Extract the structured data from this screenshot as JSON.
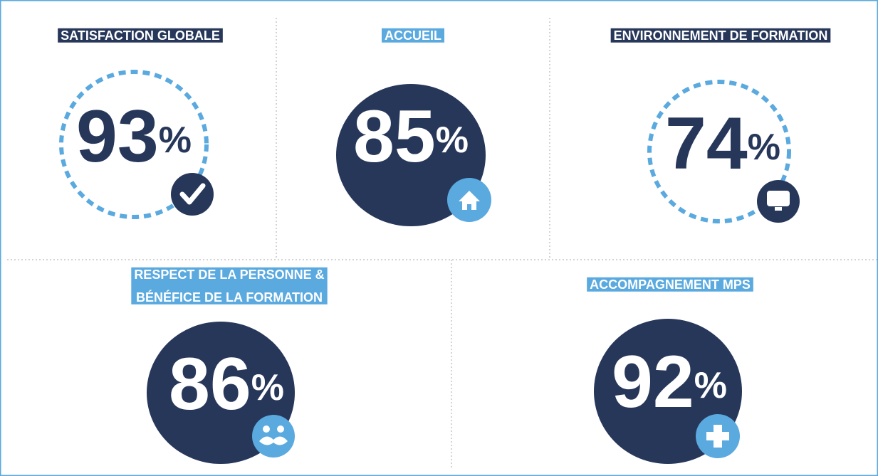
{
  "cards": [
    {
      "title": [
        "SATISFACTION GLOBALE"
      ],
      "value": 93,
      "unit": "%"
    },
    {
      "title": [
        "ACCUEIL"
      ],
      "value": 85,
      "unit": "%"
    },
    {
      "title": [
        "ENVIRONNEMENT DE FORMATION"
      ],
      "value": 74,
      "unit": "%"
    },
    {
      "title": [
        "RESPECT DE LA PERSONNE &",
        "BÉNÉFICE DE LA FORMATION"
      ],
      "value": 86,
      "unit": "%"
    },
    {
      "title": [
        "ACCOMPAGNEMENT MPS"
      ],
      "value": 92,
      "unit": "%"
    }
  ]
}
